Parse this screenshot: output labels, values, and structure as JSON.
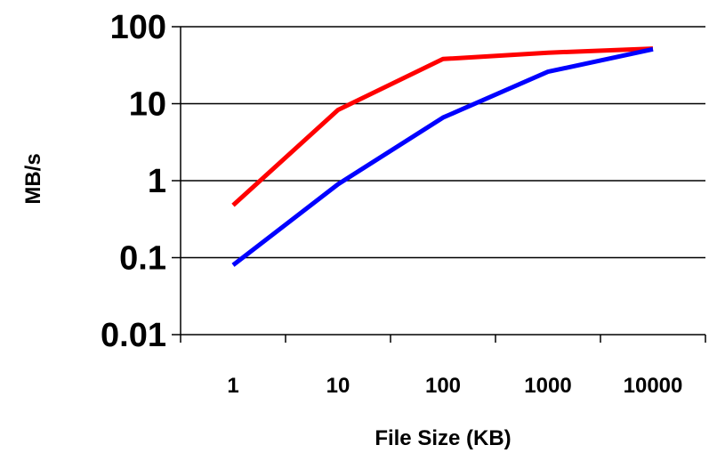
{
  "chart_data": {
    "type": "line",
    "title": "",
    "xlabel": "File Size (KB)",
    "ylabel": "MB/s",
    "x_scale": "log",
    "y_scale": "log",
    "categories": [
      "1",
      "10",
      "100",
      "1000",
      "10000"
    ],
    "x": [
      1,
      10,
      100,
      1000,
      10000
    ],
    "yticks": [
      "100",
      "10",
      "1",
      "0.1",
      "0.01"
    ],
    "ylim": [
      0.01,
      100
    ],
    "grid": "horizontal",
    "legend": "none",
    "series": [
      {
        "color": "#ff0000",
        "values": [
          0.48,
          8.3,
          38,
          46,
          52
        ]
      },
      {
        "color": "#0000ff",
        "values": [
          0.08,
          0.9,
          6.6,
          26,
          51
        ]
      }
    ]
  }
}
